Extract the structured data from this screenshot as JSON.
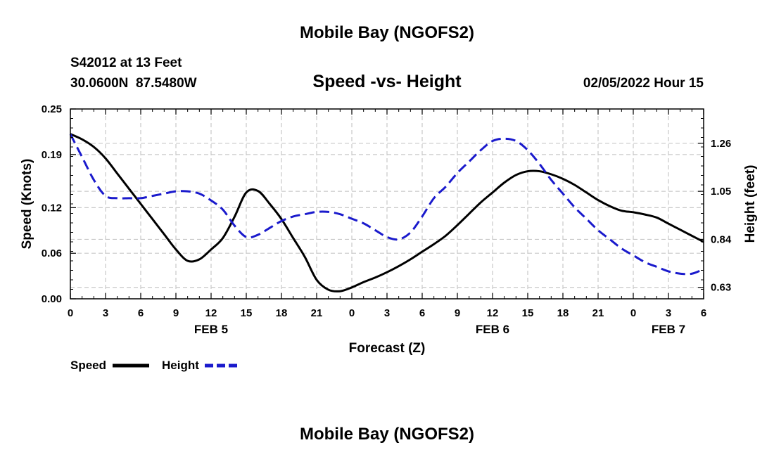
{
  "header": {
    "title": "Mobile Bay (NGOFS2)",
    "station_line1": "S42012 at 13 Feet",
    "station_line2": "30.0600N  87.5480W",
    "chart_title": "Speed -vs- Height",
    "date_label": "02/05/2022 Hour 15",
    "footer_title": "Mobile Bay (NGOFS2)"
  },
  "colors": {
    "speed": "#000000",
    "height": "#1a1acc",
    "grid": "#c8c8c8"
  },
  "chart_data": {
    "type": "line",
    "title": "Speed -vs- Height",
    "xlabel": "Forecast (Z)",
    "ylabel": "Speed (Knots)",
    "ylabel_right": "Height (feet)",
    "xlim": [
      0,
      54
    ],
    "ylim": [
      0,
      0.25
    ],
    "ylim_right": [
      0.58,
      1.41
    ],
    "x_ticks": [
      0,
      3,
      6,
      9,
      12,
      15,
      18,
      21,
      24,
      27,
      30,
      33,
      36,
      39,
      42,
      45,
      48,
      51,
      54
    ],
    "x_tick_labels": [
      "0",
      "3",
      "6",
      "9",
      "12",
      "15",
      "18",
      "21",
      "0",
      "3",
      "6",
      "9",
      "12",
      "15",
      "18",
      "21",
      "0",
      "3",
      "6"
    ],
    "date_labels": [
      {
        "x": 12,
        "label": "FEB 5"
      },
      {
        "x": 36,
        "label": "FEB 6"
      },
      {
        "x": 51,
        "label": "FEB 7"
      }
    ],
    "y_ticks": [
      0.0,
      0.06,
      0.12,
      0.19,
      0.25
    ],
    "y_tick_labels": [
      "0.00",
      "0.06",
      "0.12",
      "0.19",
      "0.25"
    ],
    "y_right_ticks": [
      0.63,
      0.84,
      1.05,
      1.26
    ],
    "y_right_tick_labels": [
      "0.63",
      "0.84",
      "1.05",
      "1.26"
    ],
    "grid": true,
    "legend": {
      "position": "bottom-left",
      "entries": [
        "Speed",
        "Height"
      ]
    },
    "series": [
      {
        "name": "Speed",
        "axis": "left",
        "style": "solid",
        "x": [
          0,
          1,
          2,
          3,
          4,
          5,
          6,
          7,
          8,
          9,
          10,
          11,
          12,
          13,
          14,
          15,
          16,
          17,
          18,
          19,
          20,
          21,
          22,
          23,
          24,
          25,
          26,
          27,
          28,
          29,
          30,
          31,
          32,
          33,
          34,
          35,
          36,
          37,
          38,
          39,
          40,
          41,
          42,
          43,
          44,
          45,
          46,
          47,
          48,
          49,
          50,
          51,
          52,
          53,
          54
        ],
        "values": [
          0.217,
          0.21,
          0.2,
          0.185,
          0.165,
          0.145,
          0.125,
          0.105,
          0.085,
          0.065,
          0.05,
          0.052,
          0.065,
          0.08,
          0.108,
          0.14,
          0.142,
          0.125,
          0.105,
          0.08,
          0.055,
          0.025,
          0.012,
          0.01,
          0.015,
          0.022,
          0.028,
          0.035,
          0.043,
          0.052,
          0.062,
          0.072,
          0.083,
          0.097,
          0.112,
          0.127,
          0.14,
          0.153,
          0.163,
          0.168,
          0.168,
          0.164,
          0.158,
          0.15,
          0.14,
          0.13,
          0.122,
          0.116,
          0.114,
          0.111,
          0.107,
          0.099,
          0.091,
          0.083,
          0.075
        ]
      },
      {
        "name": "Height",
        "axis": "right",
        "style": "dashed",
        "x": [
          0,
          1,
          2,
          3,
          4,
          5,
          6,
          7,
          8,
          9,
          10,
          11,
          12,
          13,
          14,
          15,
          16,
          17,
          18,
          19,
          20,
          21,
          22,
          23,
          24,
          25,
          26,
          27,
          28,
          29,
          30,
          31,
          32,
          33,
          34,
          35,
          36,
          37,
          38,
          39,
          40,
          41,
          42,
          43,
          44,
          45,
          46,
          47,
          48,
          49,
          50,
          51,
          52,
          53,
          54
        ],
        "values": [
          1.3,
          1.2,
          1.1,
          1.03,
          1.02,
          1.02,
          1.02,
          1.03,
          1.04,
          1.05,
          1.05,
          1.04,
          1.01,
          0.97,
          0.9,
          0.85,
          0.86,
          0.89,
          0.92,
          0.94,
          0.95,
          0.96,
          0.96,
          0.95,
          0.93,
          0.91,
          0.88,
          0.85,
          0.84,
          0.87,
          0.94,
          1.02,
          1.07,
          1.13,
          1.18,
          1.23,
          1.27,
          1.28,
          1.27,
          1.23,
          1.17,
          1.1,
          1.04,
          0.98,
          0.93,
          0.88,
          0.84,
          0.8,
          0.77,
          0.74,
          0.72,
          0.7,
          0.69,
          0.69,
          0.71
        ]
      }
    ]
  }
}
